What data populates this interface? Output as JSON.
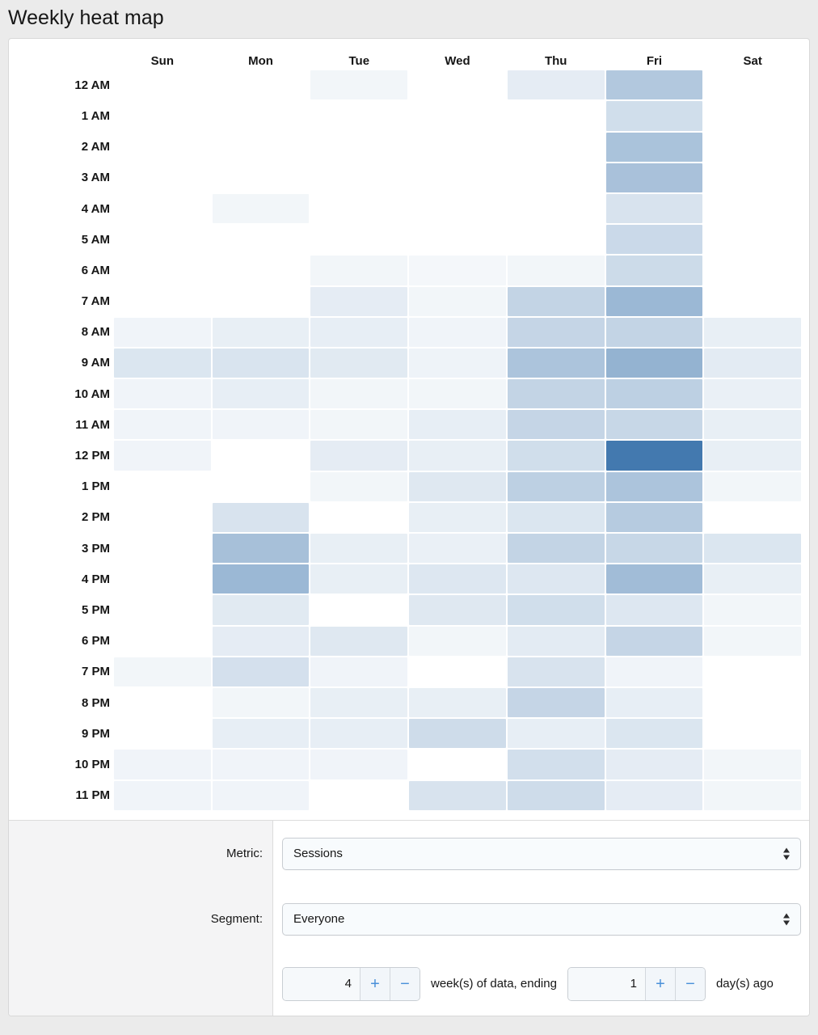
{
  "page": {
    "title": "Weekly heat map"
  },
  "chart_data": {
    "type": "heatmap",
    "title": "Weekly heat map",
    "columns": [
      "Sun",
      "Mon",
      "Tue",
      "Wed",
      "Thu",
      "Fri",
      "Sat"
    ],
    "rows": [
      "12 AM",
      "1 AM",
      "2 AM",
      "3 AM",
      "4 AM",
      "5 AM",
      "6 AM",
      "7 AM",
      "8 AM",
      "9 AM",
      "10 AM",
      "11 AM",
      "12 PM",
      "1 PM",
      "2 PM",
      "3 PM",
      "4 PM",
      "5 PM",
      "6 PM",
      "7 PM",
      "8 PM",
      "9 PM",
      "10 PM",
      "11 PM"
    ],
    "values": [
      [
        0,
        0,
        0.07,
        0,
        0.14,
        0.41,
        0
      ],
      [
        0,
        0,
        0,
        0,
        0,
        0.25,
        0
      ],
      [
        0,
        0,
        0,
        0,
        0,
        0.45,
        0
      ],
      [
        0,
        0,
        0,
        0,
        0,
        0.46,
        0
      ],
      [
        0,
        0.07,
        0,
        0,
        0,
        0.21,
        0
      ],
      [
        0,
        0,
        0,
        0,
        0,
        0.28,
        0
      ],
      [
        0,
        0,
        0.07,
        0.06,
        0.07,
        0.27,
        0
      ],
      [
        0,
        0,
        0.14,
        0.07,
        0.32,
        0.53,
        0
      ],
      [
        0.08,
        0.12,
        0.13,
        0.08,
        0.31,
        0.32,
        0.12
      ],
      [
        0.19,
        0.2,
        0.16,
        0.09,
        0.44,
        0.57,
        0.15
      ],
      [
        0.08,
        0.13,
        0.07,
        0.07,
        0.32,
        0.35,
        0.11
      ],
      [
        0.08,
        0.08,
        0.07,
        0.13,
        0.31,
        0.3,
        0.12
      ],
      [
        0.08,
        0,
        0.14,
        0.12,
        0.25,
        1,
        0.12
      ],
      [
        0,
        0,
        0.07,
        0.17,
        0.35,
        0.44,
        0.07
      ],
      [
        0,
        0.21,
        0,
        0.12,
        0.19,
        0.39,
        0
      ],
      [
        0,
        0.47,
        0.12,
        0.11,
        0.32,
        0.3,
        0.19
      ],
      [
        0,
        0.53,
        0.12,
        0.18,
        0.18,
        0.5,
        0.12
      ],
      [
        0,
        0.16,
        0,
        0.17,
        0.25,
        0.18,
        0.07
      ],
      [
        0,
        0.14,
        0.17,
        0.07,
        0.15,
        0.31,
        0.07
      ],
      [
        0.07,
        0.23,
        0.08,
        0,
        0.21,
        0.08,
        0
      ],
      [
        0,
        0.07,
        0.12,
        0.12,
        0.31,
        0.13,
        0
      ],
      [
        0,
        0.13,
        0.13,
        0.26,
        0.13,
        0.19,
        0
      ],
      [
        0.08,
        0.08,
        0.08,
        0,
        0.24,
        0.14,
        0.07
      ],
      [
        0.08,
        0.08,
        0,
        0.21,
        0.26,
        0.14,
        0.07
      ]
    ],
    "value_scale": "relative intensity 0-1 read from cell shading; 0 = white (no activity), 1 = darkest blue",
    "min_color": "#ffffff",
    "max_color": "#4379af",
    "legend_position": "none",
    "grid": false
  },
  "controls": {
    "metric": {
      "label": "Metric:",
      "value": "Sessions"
    },
    "segment": {
      "label": "Segment:",
      "value": "Everyone"
    },
    "range": {
      "weeks_value": "4",
      "days_value": "1",
      "plus_label": "+",
      "minus_label": "−",
      "middle_text": "week(s) of data, ending",
      "suffix_text": "day(s) ago"
    }
  },
  "colors": {
    "heat_max": "#4379af",
    "stepper_accent": "#4a90d9",
    "footer_left_bg": "#f4f4f5",
    "page_bg": "#ebebeb"
  }
}
